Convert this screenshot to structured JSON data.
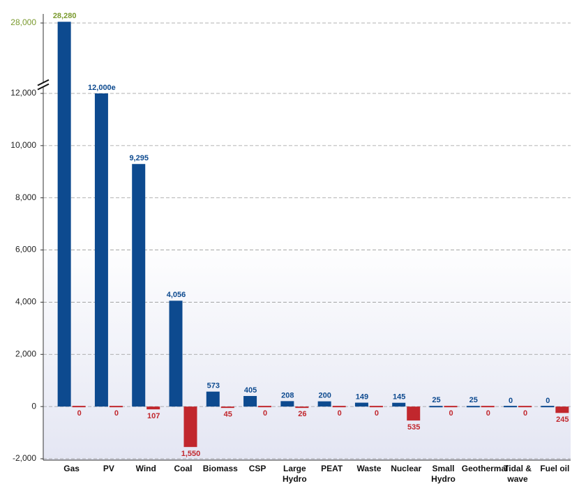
{
  "chart_data": {
    "type": "bar",
    "categories": [
      "Gas",
      "PV",
      "Wind",
      "Coal",
      "Biomass",
      "CSP",
      "Large Hydro",
      "PEAT",
      "Waste",
      "Nuclear",
      "Small Hydro",
      "Geothermal",
      "Tidal & wave",
      "Fuel oil"
    ],
    "series": [
      {
        "color": "#0d4a8f",
        "values": [
          28280,
          12000,
          9295,
          4056,
          573,
          405,
          208,
          200,
          149,
          145,
          25,
          25,
          0,
          0
        ],
        "value_labels": [
          "28,280",
          "12,000e",
          "9,295",
          "4,056",
          "573",
          "405",
          "208",
          "200",
          "149",
          "145",
          "25",
          "25",
          "0",
          "0"
        ]
      },
      {
        "color": "#c1272d",
        "values": [
          0,
          0,
          -107,
          -1550,
          -45,
          0,
          -26,
          0,
          0,
          -535,
          0,
          0,
          0,
          -245
        ],
        "value_labels": [
          "0",
          "0",
          "107",
          "1,550",
          "45",
          "0",
          "26",
          "0",
          "0",
          "535",
          "0",
          "0",
          "0",
          "245"
        ]
      }
    ],
    "ylim": [
      -2000,
      28000
    ],
    "yticks": [
      {
        "value": -2000,
        "label": "-2,000"
      },
      0,
      {
        "value": 2000,
        "label": "2,000"
      },
      {
        "value": 4000,
        "label": "4,000"
      },
      {
        "value": 6000,
        "label": "6,000"
      },
      {
        "value": 8000,
        "label": "8,000"
      },
      {
        "value": 10000,
        "label": "10,000"
      },
      {
        "value": 12000,
        "label": "12,000"
      },
      {
        "value": 28000,
        "label": "28,000"
      }
    ],
    "grid": true
  }
}
